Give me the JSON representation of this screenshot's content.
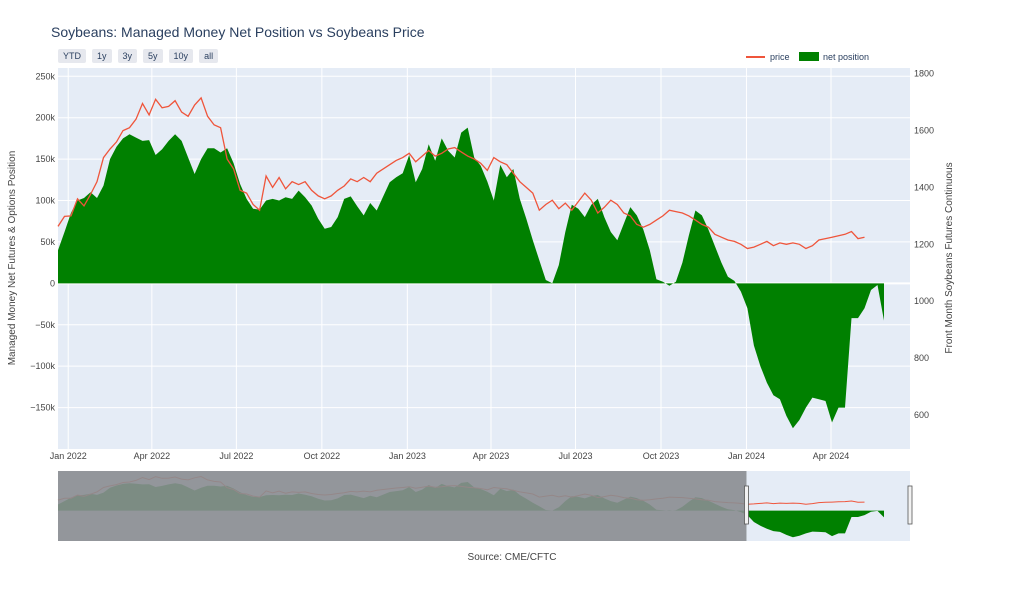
{
  "title": "Soybeans: Managed Money Net Position vs Soybeans Price",
  "range_buttons": [
    "YTD",
    "1y",
    "3y",
    "5y",
    "10y",
    "all"
  ],
  "legend": {
    "price": "price",
    "net": "net position"
  },
  "colors": {
    "price": "#ef553b",
    "net": "#008000",
    "plot_bg": "#e5ecf6",
    "grid": "#ffffff",
    "shade": "#8a8d91"
  },
  "y_left_label": "Managed Money Net Futures & Options Position",
  "y_right_label": "Front Month Soybeans Futures Continuous",
  "source": "Source: CME/CFTC",
  "chart_data": {
    "type": "area",
    "x_range": [
      "2021-12-21",
      "2024-06-25"
    ],
    "y_left_range": [
      -200000,
      260000
    ],
    "y_right_range": [
      480,
      1820
    ],
    "y_left_ticks": [
      -150000,
      -100000,
      -50000,
      0,
      50000,
      100000,
      150000,
      200000,
      250000
    ],
    "y_left_tick_labels": [
      "−150k",
      "−100k",
      "−50k",
      "0",
      "50k",
      "100k",
      "150k",
      "200k",
      "250k"
    ],
    "y_right_ticks": [
      600,
      800,
      1000,
      1200,
      1400,
      1600,
      1800
    ],
    "x_ticks": [
      "2022-01-01",
      "2022-04-01",
      "2022-07-01",
      "2022-10-01",
      "2023-01-01",
      "2023-04-01",
      "2023-07-01",
      "2023-10-01",
      "2024-01-01",
      "2024-04-01"
    ],
    "x_tick_labels": [
      "Jan 2022",
      "Apr 2022",
      "Jul 2022",
      "Oct 2022",
      "Jan 2023",
      "Apr 2023",
      "Jul 2023",
      "Oct 2023",
      "Jan 2024",
      "Apr 2024"
    ],
    "series": [
      {
        "name": "net position",
        "axis": "left",
        "type": "area",
        "points": [
          [
            "2021-12-21",
            40000
          ],
          [
            "2021-12-28",
            62000
          ],
          [
            "2022-01-04",
            85000
          ],
          [
            "2022-01-11",
            100000
          ],
          [
            "2022-01-18",
            103000
          ],
          [
            "2022-01-25",
            110000
          ],
          [
            "2022-02-01",
            103000
          ],
          [
            "2022-02-08",
            118000
          ],
          [
            "2022-02-15",
            150000
          ],
          [
            "2022-02-22",
            165000
          ],
          [
            "2022-03-01",
            175000
          ],
          [
            "2022-03-08",
            180000
          ],
          [
            "2022-03-15",
            176000
          ],
          [
            "2022-03-22",
            172000
          ],
          [
            "2022-03-29",
            173000
          ],
          [
            "2022-04-05",
            155000
          ],
          [
            "2022-04-12",
            162000
          ],
          [
            "2022-04-19",
            172000
          ],
          [
            "2022-04-26",
            180000
          ],
          [
            "2022-05-03",
            172000
          ],
          [
            "2022-05-10",
            152000
          ],
          [
            "2022-05-17",
            132000
          ],
          [
            "2022-05-24",
            150000
          ],
          [
            "2022-05-31",
            163000
          ],
          [
            "2022-06-07",
            163000
          ],
          [
            "2022-06-14",
            158000
          ],
          [
            "2022-06-21",
            163000
          ],
          [
            "2022-06-28",
            145000
          ],
          [
            "2022-07-05",
            120000
          ],
          [
            "2022-07-12",
            102000
          ],
          [
            "2022-07-19",
            90000
          ],
          [
            "2022-07-26",
            89000
          ],
          [
            "2022-08-02",
            100000
          ],
          [
            "2022-08-09",
            102000
          ],
          [
            "2022-08-16",
            100000
          ],
          [
            "2022-08-23",
            104000
          ],
          [
            "2022-08-30",
            102000
          ],
          [
            "2022-09-06",
            112000
          ],
          [
            "2022-09-13",
            104000
          ],
          [
            "2022-09-20",
            94000
          ],
          [
            "2022-09-27",
            78000
          ],
          [
            "2022-10-04",
            66000
          ],
          [
            "2022-10-11",
            68000
          ],
          [
            "2022-10-18",
            80000
          ],
          [
            "2022-10-25",
            102000
          ],
          [
            "2022-11-01",
            105000
          ],
          [
            "2022-11-08",
            93000
          ],
          [
            "2022-11-15",
            82000
          ],
          [
            "2022-11-22",
            97000
          ],
          [
            "2022-11-29",
            88000
          ],
          [
            "2022-12-06",
            105000
          ],
          [
            "2022-12-13",
            122000
          ],
          [
            "2022-12-20",
            128000
          ],
          [
            "2022-12-27",
            133000
          ],
          [
            "2023-01-03",
            155000
          ],
          [
            "2023-01-10",
            122000
          ],
          [
            "2023-01-17",
            138000
          ],
          [
            "2023-01-24",
            168000
          ],
          [
            "2023-01-31",
            148000
          ],
          [
            "2023-02-07",
            175000
          ],
          [
            "2023-02-14",
            160000
          ],
          [
            "2023-02-21",
            152000
          ],
          [
            "2023-02-28",
            182000
          ],
          [
            "2023-03-07",
            188000
          ],
          [
            "2023-03-14",
            152000
          ],
          [
            "2023-03-21",
            142000
          ],
          [
            "2023-03-28",
            123000
          ],
          [
            "2023-04-04",
            100000
          ],
          [
            "2023-04-11",
            143000
          ],
          [
            "2023-04-18",
            128000
          ],
          [
            "2023-04-25",
            138000
          ],
          [
            "2023-05-02",
            102000
          ],
          [
            "2023-05-09",
            78000
          ],
          [
            "2023-05-16",
            52000
          ],
          [
            "2023-05-23",
            28000
          ],
          [
            "2023-05-30",
            4000
          ],
          [
            "2023-06-06",
            0
          ],
          [
            "2023-06-13",
            22000
          ],
          [
            "2023-06-20",
            62000
          ],
          [
            "2023-06-27",
            95000
          ],
          [
            "2023-07-04",
            90000
          ],
          [
            "2023-07-11",
            80000
          ],
          [
            "2023-07-18",
            95000
          ],
          [
            "2023-07-25",
            102000
          ],
          [
            "2023-08-01",
            80000
          ],
          [
            "2023-08-08",
            62000
          ],
          [
            "2023-08-15",
            52000
          ],
          [
            "2023-08-22",
            72000
          ],
          [
            "2023-08-29",
            92000
          ],
          [
            "2023-09-05",
            82000
          ],
          [
            "2023-09-12",
            65000
          ],
          [
            "2023-09-19",
            40000
          ],
          [
            "2023-09-26",
            5000
          ],
          [
            "2023-10-03",
            2000
          ],
          [
            "2023-10-10",
            -3000
          ],
          [
            "2023-10-17",
            2000
          ],
          [
            "2023-10-24",
            25000
          ],
          [
            "2023-10-31",
            58000
          ],
          [
            "2023-11-07",
            88000
          ],
          [
            "2023-11-14",
            82000
          ],
          [
            "2023-11-21",
            65000
          ],
          [
            "2023-11-28",
            45000
          ],
          [
            "2023-12-05",
            25000
          ],
          [
            "2023-12-12",
            8000
          ],
          [
            "2023-12-19",
            3000
          ],
          [
            "2023-12-26",
            -10000
          ],
          [
            "2024-01-02",
            -30000
          ],
          [
            "2024-01-09",
            -75000
          ],
          [
            "2024-01-16",
            -100000
          ],
          [
            "2024-01-23",
            -120000
          ],
          [
            "2024-01-30",
            -135000
          ],
          [
            "2024-02-06",
            -140000
          ],
          [
            "2024-02-13",
            -160000
          ],
          [
            "2024-02-20",
            -175000
          ],
          [
            "2024-02-27",
            -165000
          ],
          [
            "2024-03-05",
            -150000
          ],
          [
            "2024-03-12",
            -138000
          ],
          [
            "2024-03-19",
            -140000
          ],
          [
            "2024-03-26",
            -142000
          ],
          [
            "2024-04-02",
            -168000
          ],
          [
            "2024-04-09",
            -150000
          ],
          [
            "2024-04-16",
            -150000
          ],
          [
            "2024-04-23",
            -42000
          ],
          [
            "2024-04-30",
            -42000
          ],
          [
            "2024-05-07",
            -30000
          ],
          [
            "2024-05-14",
            -8000
          ],
          [
            "2024-05-21",
            -2000
          ],
          [
            "2024-05-28",
            -45000
          ]
        ]
      },
      {
        "name": "price",
        "axis": "right",
        "type": "line",
        "points": [
          [
            "2021-12-21",
            1263
          ],
          [
            "2021-12-28",
            1298
          ],
          [
            "2022-01-04",
            1300
          ],
          [
            "2022-01-11",
            1360
          ],
          [
            "2022-01-18",
            1335
          ],
          [
            "2022-01-25",
            1375
          ],
          [
            "2022-02-01",
            1420
          ],
          [
            "2022-02-08",
            1505
          ],
          [
            "2022-02-15",
            1535
          ],
          [
            "2022-02-22",
            1560
          ],
          [
            "2022-03-01",
            1600
          ],
          [
            "2022-03-08",
            1610
          ],
          [
            "2022-03-15",
            1640
          ],
          [
            "2022-03-22",
            1695
          ],
          [
            "2022-03-29",
            1655
          ],
          [
            "2022-04-05",
            1710
          ],
          [
            "2022-04-12",
            1680
          ],
          [
            "2022-04-19",
            1685
          ],
          [
            "2022-04-26",
            1705
          ],
          [
            "2022-05-03",
            1665
          ],
          [
            "2022-05-10",
            1650
          ],
          [
            "2022-05-17",
            1690
          ],
          [
            "2022-05-24",
            1715
          ],
          [
            "2022-05-31",
            1650
          ],
          [
            "2022-06-07",
            1620
          ],
          [
            "2022-06-14",
            1610
          ],
          [
            "2022-06-21",
            1500
          ],
          [
            "2022-06-28",
            1465
          ],
          [
            "2022-07-05",
            1390
          ],
          [
            "2022-07-12",
            1380
          ],
          [
            "2022-07-19",
            1340
          ],
          [
            "2022-07-26",
            1320
          ],
          [
            "2022-08-02",
            1440
          ],
          [
            "2022-08-09",
            1400
          ],
          [
            "2022-08-16",
            1435
          ],
          [
            "2022-08-23",
            1395
          ],
          [
            "2022-08-30",
            1420
          ],
          [
            "2022-09-06",
            1410
          ],
          [
            "2022-09-13",
            1420
          ],
          [
            "2022-09-20",
            1390
          ],
          [
            "2022-09-27",
            1370
          ],
          [
            "2022-10-04",
            1360
          ],
          [
            "2022-10-11",
            1370
          ],
          [
            "2022-10-18",
            1390
          ],
          [
            "2022-10-25",
            1405
          ],
          [
            "2022-11-01",
            1430
          ],
          [
            "2022-11-08",
            1420
          ],
          [
            "2022-11-15",
            1435
          ],
          [
            "2022-11-22",
            1420
          ],
          [
            "2022-11-29",
            1450
          ],
          [
            "2022-12-06",
            1465
          ],
          [
            "2022-12-13",
            1480
          ],
          [
            "2022-12-20",
            1495
          ],
          [
            "2022-12-27",
            1505
          ],
          [
            "2023-01-03",
            1520
          ],
          [
            "2023-01-10",
            1490
          ],
          [
            "2023-01-17",
            1510
          ],
          [
            "2023-01-24",
            1530
          ],
          [
            "2023-01-31",
            1510
          ],
          [
            "2023-02-07",
            1520
          ],
          [
            "2023-02-14",
            1535
          ],
          [
            "2023-02-21",
            1540
          ],
          [
            "2023-02-28",
            1525
          ],
          [
            "2023-03-07",
            1510
          ],
          [
            "2023-03-14",
            1500
          ],
          [
            "2023-03-21",
            1485
          ],
          [
            "2023-03-28",
            1460
          ],
          [
            "2023-04-04",
            1505
          ],
          [
            "2023-04-11",
            1490
          ],
          [
            "2023-04-18",
            1480
          ],
          [
            "2023-04-25",
            1450
          ],
          [
            "2023-05-02",
            1420
          ],
          [
            "2023-05-09",
            1400
          ],
          [
            "2023-05-16",
            1380
          ],
          [
            "2023-05-23",
            1320
          ],
          [
            "2023-05-30",
            1340
          ],
          [
            "2023-06-06",
            1355
          ],
          [
            "2023-06-13",
            1325
          ],
          [
            "2023-06-20",
            1345
          ],
          [
            "2023-06-27",
            1320
          ],
          [
            "2023-07-04",
            1350
          ],
          [
            "2023-07-11",
            1380
          ],
          [
            "2023-07-18",
            1355
          ],
          [
            "2023-07-25",
            1310
          ],
          [
            "2023-08-01",
            1330
          ],
          [
            "2023-08-08",
            1355
          ],
          [
            "2023-08-15",
            1340
          ],
          [
            "2023-08-22",
            1310
          ],
          [
            "2023-08-29",
            1300
          ],
          [
            "2023-09-05",
            1270
          ],
          [
            "2023-09-12",
            1260
          ],
          [
            "2023-09-19",
            1270
          ],
          [
            "2023-09-26",
            1285
          ],
          [
            "2023-10-03",
            1300
          ],
          [
            "2023-10-10",
            1320
          ],
          [
            "2023-10-17",
            1315
          ],
          [
            "2023-10-24",
            1310
          ],
          [
            "2023-10-31",
            1300
          ],
          [
            "2023-11-07",
            1285
          ],
          [
            "2023-11-14",
            1270
          ],
          [
            "2023-11-21",
            1260
          ],
          [
            "2023-11-28",
            1235
          ],
          [
            "2023-12-05",
            1225
          ],
          [
            "2023-12-12",
            1215
          ],
          [
            "2023-12-19",
            1210
          ],
          [
            "2023-12-26",
            1200
          ],
          [
            "2024-01-02",
            1185
          ],
          [
            "2024-01-09",
            1190
          ],
          [
            "2024-01-16",
            1200
          ],
          [
            "2024-01-23",
            1210
          ],
          [
            "2024-01-30",
            1195
          ],
          [
            "2024-02-06",
            1205
          ],
          [
            "2024-02-13",
            1200
          ],
          [
            "2024-02-20",
            1205
          ],
          [
            "2024-02-27",
            1200
          ],
          [
            "2024-03-05",
            1185
          ],
          [
            "2024-03-12",
            1195
          ],
          [
            "2024-03-19",
            1215
          ],
          [
            "2024-03-26",
            1220
          ],
          [
            "2024-04-02",
            1225
          ],
          [
            "2024-04-09",
            1230
          ],
          [
            "2024-04-16",
            1235
          ],
          [
            "2024-04-23",
            1245
          ],
          [
            "2024-04-30",
            1220
          ],
          [
            "2024-05-07",
            1225
          ]
        ]
      }
    ],
    "navigator": {
      "window_start": "2024-01-01",
      "window_end": "2024-06-25"
    }
  }
}
